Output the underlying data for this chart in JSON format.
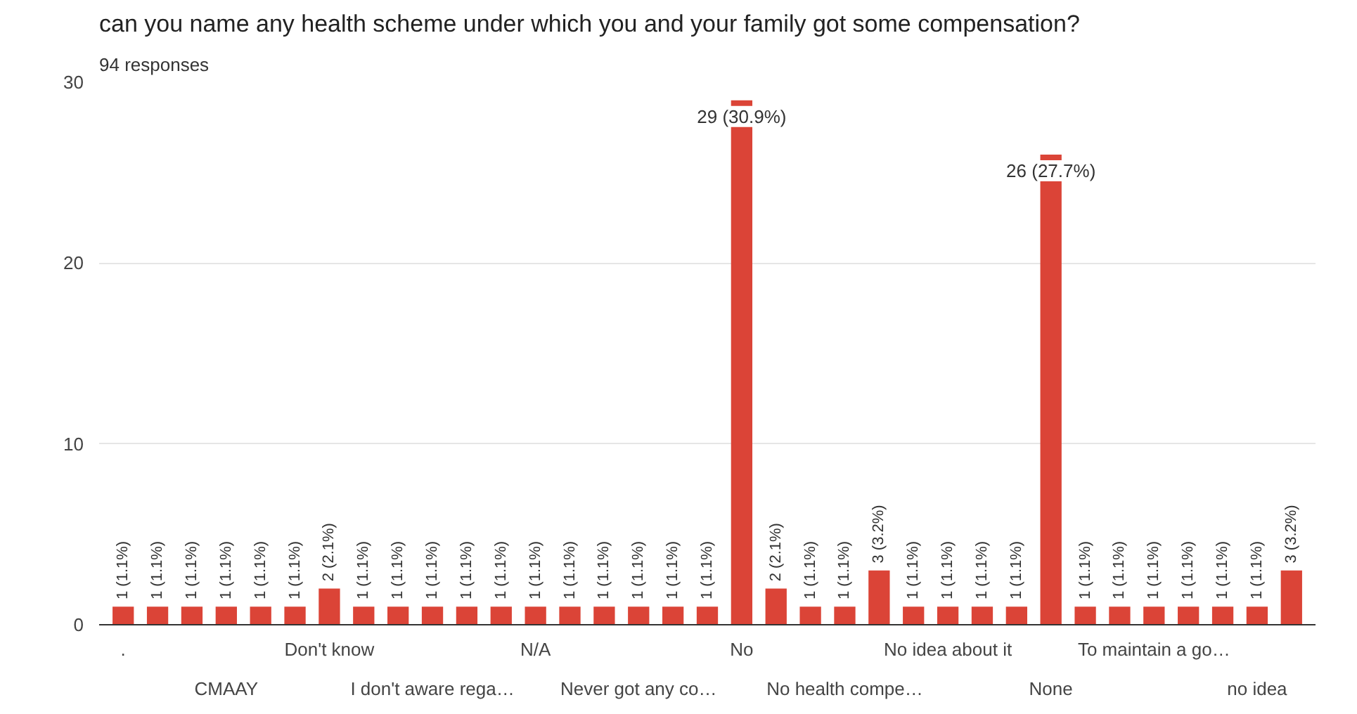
{
  "chart_data": {
    "type": "bar",
    "title": "can you name any health scheme under which you and your family got some compensation?",
    "subtitle": "94 responses",
    "categories": [
      ".",
      null,
      null,
      "CMAAY",
      null,
      null,
      "Don't know",
      null,
      null,
      "I don't aware rega…",
      null,
      null,
      "N/A",
      null,
      null,
      "Never got any co…",
      null,
      null,
      "No",
      null,
      null,
      "No health compe…",
      null,
      null,
      "No idea about it",
      null,
      null,
      "None",
      null,
      null,
      "To maintain a go…",
      null,
      null,
      "no idea",
      null
    ],
    "values": [
      1,
      1,
      1,
      1,
      1,
      1,
      2,
      1,
      1,
      1,
      1,
      1,
      1,
      1,
      1,
      1,
      1,
      1,
      29,
      2,
      1,
      1,
      3,
      1,
      1,
      1,
      1,
      26,
      1,
      1,
      1,
      1,
      1,
      1,
      3
    ],
    "value_labels": [
      "1 (1.1%)",
      "1 (1.1%)",
      "1 (1.1%)",
      "1 (1.1%)",
      "1 (1.1%)",
      "1 (1.1%)",
      "2 (2.1%)",
      "1 (1.1%)",
      "1 (1.1%)",
      "1 (1.1%)",
      "1 (1.1%)",
      "1 (1.1%)",
      "1 (1.1%)",
      "1 (1.1%)",
      "1 (1.1%)",
      "1 (1.1%)",
      "1 (1.1%)",
      "1 (1.1%)",
      "29 (30.9%)",
      "2 (2.1%)",
      "1 (1.1%)",
      "1 (1.1%)",
      "3 (3.2%)",
      "1 (1.1%)",
      "1 (1.1%)",
      "1 (1.1%)",
      "1 (1.1%)",
      "26 (27.7%)",
      "1 (1.1%)",
      "1 (1.1%)",
      "1 (1.1%)",
      "1 (1.1%)",
      "1 (1.1%)",
      "1 (1.1%)",
      "3 (3.2%)"
    ],
    "color": "#db4437",
    "ylim": [
      0,
      30
    ],
    "yticks": [
      0,
      10,
      20,
      30
    ],
    "grid": "y"
  }
}
